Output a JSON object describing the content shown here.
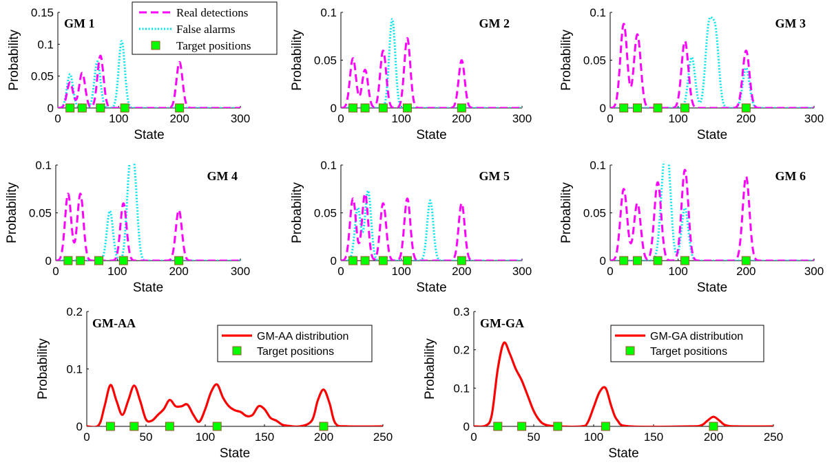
{
  "colors": {
    "real_detections": "#ff00ff",
    "false_alarms": "#00e5ee",
    "fused": "#ff0000",
    "marker_fill": "#00ff00",
    "marker_edge": "#a0522d",
    "axis": "#000000"
  },
  "legend_small": {
    "real_label": "Real detections",
    "false_label": "False alarms",
    "targets_label": "Target positions"
  },
  "legend_aa": {
    "dist_label": "GM-AA distribution",
    "targets_label": "Target positions"
  },
  "legend_ga": {
    "dist_label": "GM-GA distribution",
    "targets_label": "Target positions"
  },
  "chart_data": [
    {
      "type": "line",
      "panel": "GM 1",
      "xlabel": "State",
      "ylabel": "Probability",
      "xlim": [
        0,
        300
      ],
      "ylim": [
        0,
        0.15
      ],
      "xticks": [
        "0",
        "100",
        "200",
        "300"
      ],
      "yticks": [
        "0",
        "0.05",
        "0.1",
        "0.15"
      ],
      "real_peaks": [
        [
          20,
          0.04
        ],
        [
          40,
          0.055
        ],
        [
          70,
          0.082
        ],
        [
          200,
          0.072
        ]
      ],
      "false_peaks": [
        [
          20,
          0.053
        ],
        [
          65,
          0.073
        ],
        [
          105,
          0.105
        ]
      ],
      "targets": [
        20,
        40,
        70,
        110,
        200
      ],
      "legend": "top-center"
    },
    {
      "type": "line",
      "panel": "GM 2",
      "xlabel": "State",
      "ylabel": "Probability",
      "xlim": [
        0,
        300
      ],
      "ylim": [
        0,
        0.1
      ],
      "xticks": [
        "0",
        "100",
        "200",
        "300"
      ],
      "yticks": [
        "0",
        "0.05",
        "0.1"
      ],
      "real_peaks": [
        [
          20,
          0.052
        ],
        [
          40,
          0.04
        ],
        [
          70,
          0.06
        ],
        [
          110,
          0.073
        ],
        [
          200,
          0.05
        ]
      ],
      "false_peaks": [
        [
          85,
          0.093
        ]
      ],
      "targets": [
        20,
        40,
        70,
        110,
        200
      ]
    },
    {
      "type": "line",
      "panel": "GM 3",
      "xlabel": "State",
      "ylabel": "Probability",
      "xlim": [
        0,
        300
      ],
      "ylim": [
        0,
        0.1
      ],
      "xticks": [
        "0",
        "100",
        "200",
        "300"
      ],
      "yticks": [
        "0",
        "0.05",
        "0.1"
      ],
      "real_peaks": [
        [
          20,
          0.088
        ],
        [
          40,
          0.077
        ],
        [
          110,
          0.07
        ],
        [
          200,
          0.06
        ]
      ],
      "false_peaks": [
        [
          120,
          0.053
        ],
        [
          145,
          0.08
        ],
        [
          155,
          0.075
        ],
        [
          200,
          0.042
        ]
      ],
      "targets": [
        20,
        40,
        70,
        110,
        200
      ]
    },
    {
      "type": "line",
      "panel": "GM 4",
      "xlabel": "State",
      "ylabel": "Probability",
      "xlim": [
        0,
        300
      ],
      "ylim": [
        0,
        0.1
      ],
      "xticks": [
        "0",
        "100",
        "200",
        "300"
      ],
      "yticks": [
        "0",
        "0.05",
        "0.1"
      ],
      "real_peaks": [
        [
          20,
          0.07
        ],
        [
          40,
          0.07
        ],
        [
          110,
          0.06
        ],
        [
          200,
          0.053
        ]
      ],
      "false_peaks": [
        [
          88,
          0.052
        ],
        [
          120,
          0.083
        ],
        [
          128,
          0.076
        ]
      ],
      "targets": [
        20,
        40,
        70,
        110,
        200
      ]
    },
    {
      "type": "line",
      "panel": "GM 5",
      "xlabel": "State",
      "ylabel": "Probability",
      "xlim": [
        0,
        300
      ],
      "ylim": [
        0,
        0.1
      ],
      "xticks": [
        "0",
        "100",
        "200",
        "300"
      ],
      "yticks": [
        "0",
        "0.05",
        "0.1"
      ],
      "real_peaks": [
        [
          20,
          0.065
        ],
        [
          40,
          0.07
        ],
        [
          70,
          0.06
        ],
        [
          110,
          0.065
        ],
        [
          200,
          0.06
        ]
      ],
      "false_peaks": [
        [
          28,
          0.055
        ],
        [
          45,
          0.073
        ],
        [
          148,
          0.063
        ]
      ],
      "targets": [
        20,
        40,
        70,
        110,
        200
      ]
    },
    {
      "type": "line",
      "panel": "GM 6",
      "xlabel": "State",
      "ylabel": "Probability",
      "xlim": [
        0,
        300
      ],
      "ylim": [
        0,
        0.1
      ],
      "xticks": [
        "0",
        "100",
        "200",
        "300"
      ],
      "yticks": [
        "0",
        "0.05",
        "0.1"
      ],
      "real_peaks": [
        [
          20,
          0.075
        ],
        [
          40,
          0.06
        ],
        [
          70,
          0.082
        ],
        [
          110,
          0.095
        ],
        [
          200,
          0.088
        ]
      ],
      "false_peaks": [
        [
          78,
          0.065
        ],
        [
          85,
          0.088
        ],
        [
          110,
          0.055
        ]
      ],
      "targets": [
        20,
        40,
        70,
        110,
        200
      ]
    },
    {
      "type": "line",
      "panel": "GM-AA",
      "xlabel": "State",
      "ylabel": "Probability",
      "xlim": [
        0,
        250
      ],
      "ylim": [
        0,
        0.2
      ],
      "xticks": [
        "0",
        "50",
        "100",
        "150",
        "200",
        "250"
      ],
      "yticks": [
        "0",
        "0.1",
        "0.2"
      ],
      "series": [
        {
          "name": "GM-AA distribution",
          "x": [
            0,
            10,
            15,
            20,
            25,
            30,
            35,
            40,
            45,
            50,
            55,
            60,
            65,
            70,
            75,
            80,
            85,
            90,
            95,
            100,
            105,
            110,
            115,
            120,
            125,
            130,
            135,
            140,
            145,
            150,
            155,
            160,
            165,
            170,
            180,
            190,
            195,
            200,
            205,
            210,
            220,
            250
          ],
          "y": [
            0,
            0.002,
            0.035,
            0.072,
            0.045,
            0.02,
            0.045,
            0.071,
            0.045,
            0.012,
            0.01,
            0.02,
            0.03,
            0.046,
            0.035,
            0.035,
            0.038,
            0.02,
            0.008,
            0.03,
            0.06,
            0.073,
            0.05,
            0.035,
            0.028,
            0.025,
            0.018,
            0.02,
            0.035,
            0.03,
            0.015,
            0.01,
            0.003,
            0.001,
            0,
            0.01,
            0.045,
            0.064,
            0.04,
            0.005,
            0,
            0
          ]
        }
      ],
      "targets": [
        20,
        40,
        70,
        110,
        200
      ],
      "legend": "top-right"
    },
    {
      "type": "line",
      "panel": "GM-GA",
      "xlabel": "State",
      "ylabel": "Probability",
      "xlim": [
        0,
        250
      ],
      "ylim": [
        0,
        0.3
      ],
      "xticks": [
        "0",
        "50",
        "100",
        "150",
        "200",
        "250"
      ],
      "yticks": [
        "0",
        "0.1",
        "0.2",
        "0.3"
      ],
      "series": [
        {
          "name": "GM-GA distribution",
          "x": [
            0,
            10,
            15,
            20,
            25,
            30,
            35,
            40,
            45,
            50,
            55,
            60,
            70,
            90,
            95,
            100,
            105,
            110,
            115,
            120,
            130,
            180,
            190,
            195,
            200,
            205,
            210,
            220,
            250
          ],
          "y": [
            0,
            0.002,
            0.03,
            0.15,
            0.218,
            0.19,
            0.15,
            0.12,
            0.08,
            0.04,
            0.015,
            0.004,
            0,
            0,
            0.01,
            0.05,
            0.09,
            0.1,
            0.05,
            0.015,
            0,
            0,
            0.003,
            0.015,
            0.025,
            0.015,
            0.003,
            0,
            0
          ]
        }
      ],
      "targets": [
        20,
        40,
        70,
        110,
        200
      ],
      "legend": "top-right"
    }
  ]
}
